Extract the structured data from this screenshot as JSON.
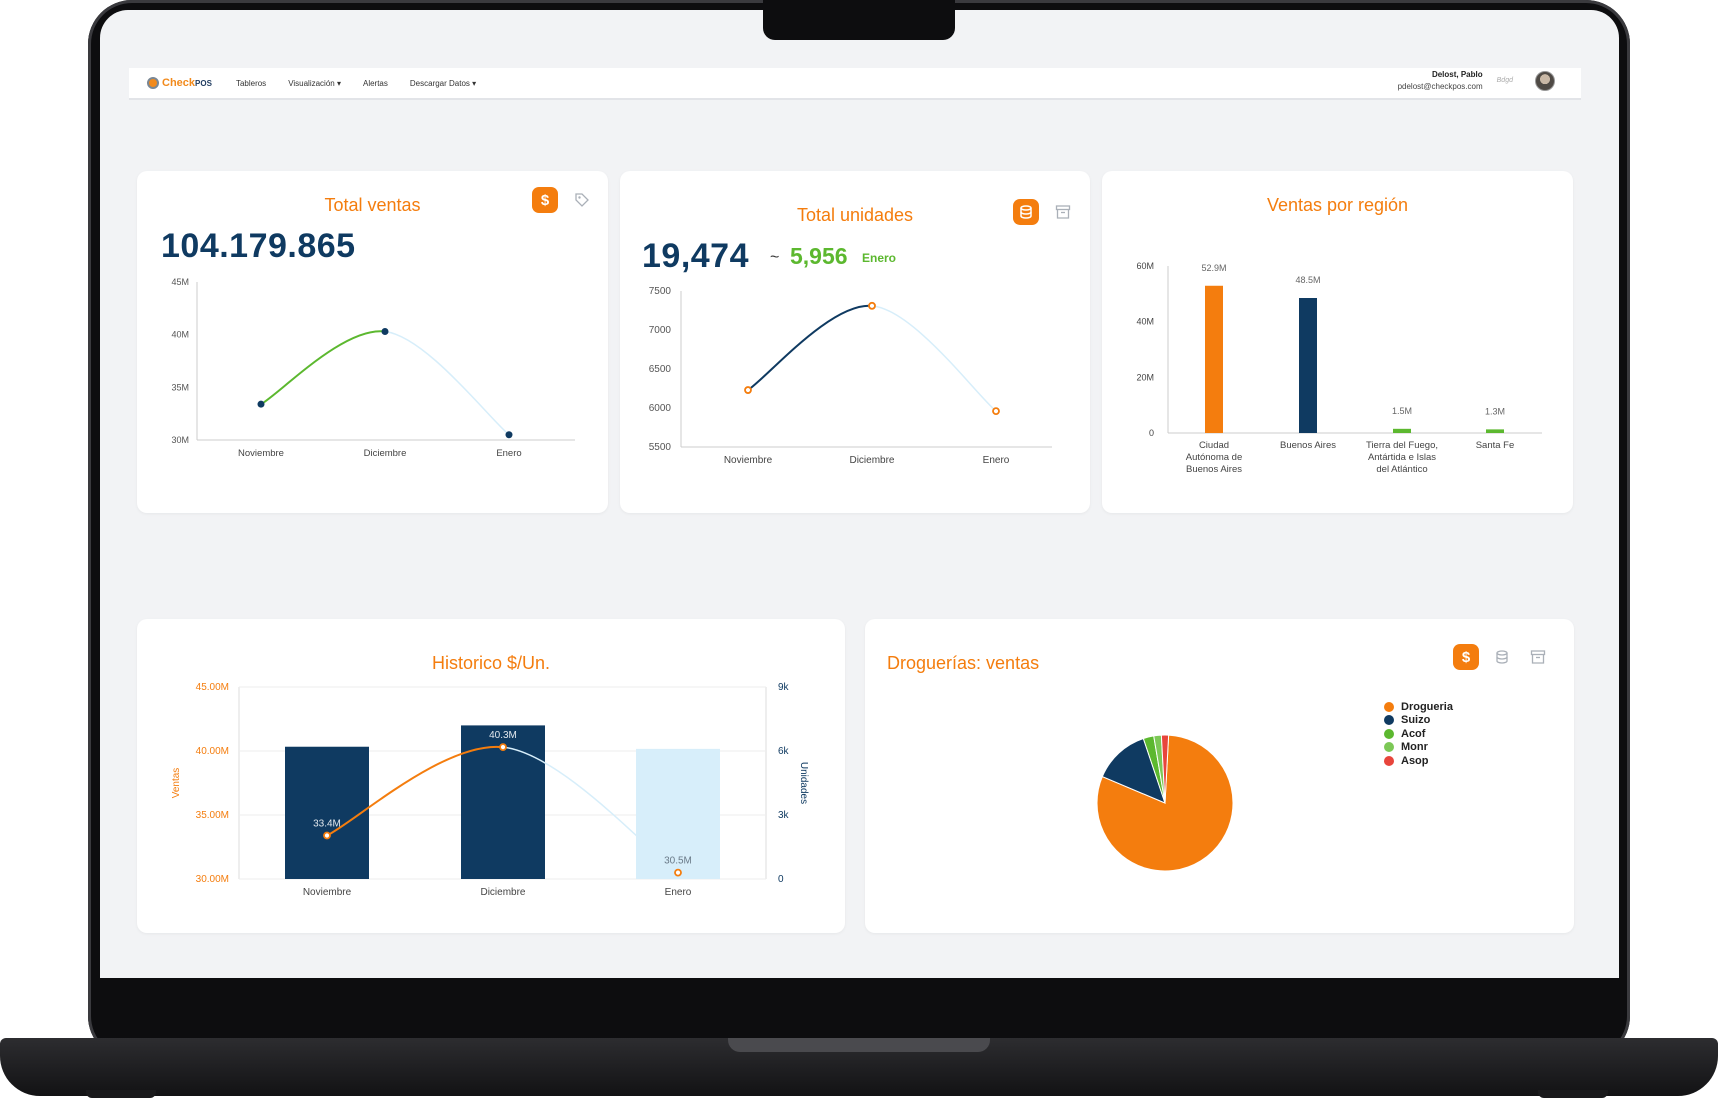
{
  "navbar": {
    "logo_main": "Check",
    "logo_suffix": "POS",
    "items": [
      "Tableros",
      "Visualización ▾",
      "Alertas",
      "Descargar Datos ▾"
    ],
    "user_name": "Delost, Pablo",
    "user_email": "pdelost@checkpos.com",
    "user_extra": "Bdgd"
  },
  "cards": {
    "total_ventas": {
      "title": "Total ventas",
      "value": "104.179.865",
      "icon_active": "dollar-icon",
      "icon_inactive": "tag-icon"
    },
    "total_unidades": {
      "title": "Total unidades",
      "value": "19,474",
      "tilde": "~",
      "delta": "5,956",
      "delta_label": "Enero",
      "icon_active": "database-icon",
      "icon_inactive": "archive-icon"
    },
    "ventas_region": {
      "title": "Ventas por región"
    },
    "historico": {
      "title": "Historico $/Un."
    },
    "droguerias": {
      "title": "Droguerías: ventas",
      "icons": [
        "dollar-icon",
        "database-icon",
        "archive-icon"
      ]
    }
  },
  "colors": {
    "orange": "#f47d0e",
    "navy": "#0f3a61",
    "green": "#5cb82f",
    "light_blue": "#d7eefa",
    "red": "#e8453c"
  },
  "chart_data": [
    {
      "id": "total_ventas",
      "type": "line",
      "categories": [
        "Noviembre",
        "Diciembre",
        "Enero"
      ],
      "values": [
        33.4,
        40.3,
        30.5
      ],
      "yticks": [
        "45M",
        "40M",
        "35M",
        "30M"
      ],
      "ylim": [
        30,
        45
      ]
    },
    {
      "id": "total_unidades",
      "type": "line",
      "categories": [
        "Noviembre",
        "Diciembre",
        "Enero"
      ],
      "values": [
        6230,
        7310,
        5960
      ],
      "yticks": [
        "7500",
        "7000",
        "6500",
        "6000",
        "5500"
      ],
      "ylim": [
        5500,
        7500
      ]
    },
    {
      "id": "ventas_region",
      "type": "bar",
      "categories": [
        [
          "Ciudad",
          "Autónoma de",
          "Buenos Aires"
        ],
        [
          "Buenos Aires"
        ],
        [
          "Tierra del Fuego,",
          "Antártida e Islas",
          "del Atlántico"
        ],
        [
          "Santa Fe"
        ]
      ],
      "values": [
        52.9,
        48.5,
        1.5,
        1.3
      ],
      "labels": [
        "52.9M",
        "48.5M",
        "1.5M",
        "1.3M"
      ],
      "yticks": [
        "60M",
        "40M",
        "20M",
        "0"
      ],
      "ylim": [
        0,
        60
      ]
    },
    {
      "id": "historico",
      "type": "bar",
      "categories": [
        "Noviembre",
        "Diciembre",
        "Enero"
      ],
      "bar_values": [
        6.2,
        7.2,
        6.1
      ],
      "line_values": [
        33.4,
        40.3,
        30.5
      ],
      "line_labels": [
        "33.4M",
        "40.3M",
        "30.5M"
      ],
      "ylabel": "Ventas",
      "y2label": "Unidades",
      "yticks": [
        "45.00M",
        "40.00M",
        "35.00M",
        "30.00M"
      ],
      "y2ticks": [
        "9k",
        "6k",
        "3k",
        "0"
      ],
      "ylim": [
        30,
        45
      ],
      "y2lim": [
        0,
        9
      ]
    },
    {
      "id": "droguerias",
      "type": "pie",
      "labels": [
        "Drogueria",
        "Suizo",
        "Acof",
        "Monr",
        "Asop"
      ],
      "values": [
        80.5,
        13.5,
        2.5,
        1.8,
        1.7
      ]
    }
  ]
}
